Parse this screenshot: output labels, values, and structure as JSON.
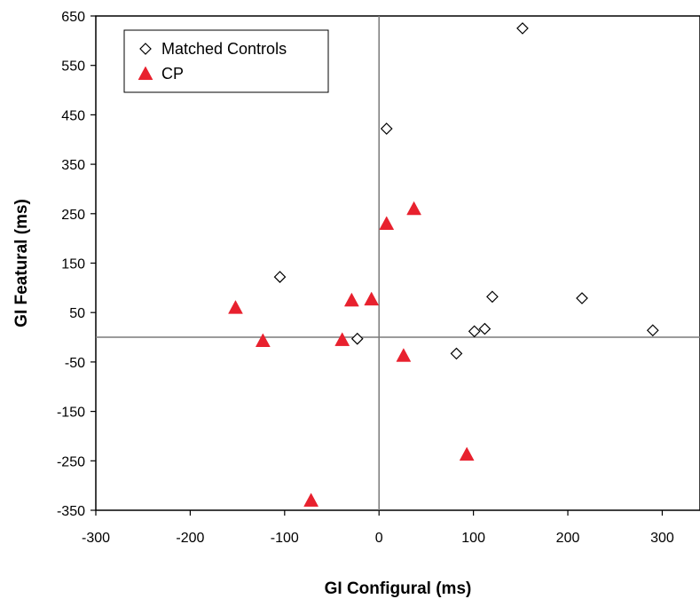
{
  "chart_data": {
    "type": "scatter",
    "xlabel": "GI Configural (ms)",
    "ylabel": "GI Featural (ms)",
    "xlim": [
      -300,
      340
    ],
    "ylim": [
      -350,
      650
    ],
    "xticks": [
      "-300",
      "-200",
      "-100",
      "0",
      "100",
      "200",
      "300"
    ],
    "yticks": [
      "650",
      "550",
      "450",
      "350",
      "250",
      "150",
      "50",
      "-50",
      "-150",
      "-250",
      "-350"
    ],
    "legend_position": "top-left",
    "series": [
      {
        "name": "Matched Controls",
        "marker": "diamond-open",
        "color": "#000000",
        "points": [
          [
            152,
            625
          ],
          [
            8,
            422
          ],
          [
            -105,
            122
          ],
          [
            120,
            82
          ],
          [
            215,
            79
          ],
          [
            -23,
            -3
          ],
          [
            112,
            17
          ],
          [
            101,
            12
          ],
          [
            290,
            14
          ],
          [
            82,
            -33
          ]
        ]
      },
      {
        "name": "CP",
        "marker": "triangle-filled",
        "color": "#e8212e",
        "points": [
          [
            37,
            260
          ],
          [
            8,
            230
          ],
          [
            -8,
            77
          ],
          [
            -29,
            75
          ],
          [
            -152,
            60
          ],
          [
            -123,
            -7
          ],
          [
            -39,
            -5
          ],
          [
            26,
            -37
          ],
          [
            93,
            -237
          ],
          [
            -72,
            -330
          ]
        ]
      }
    ]
  }
}
